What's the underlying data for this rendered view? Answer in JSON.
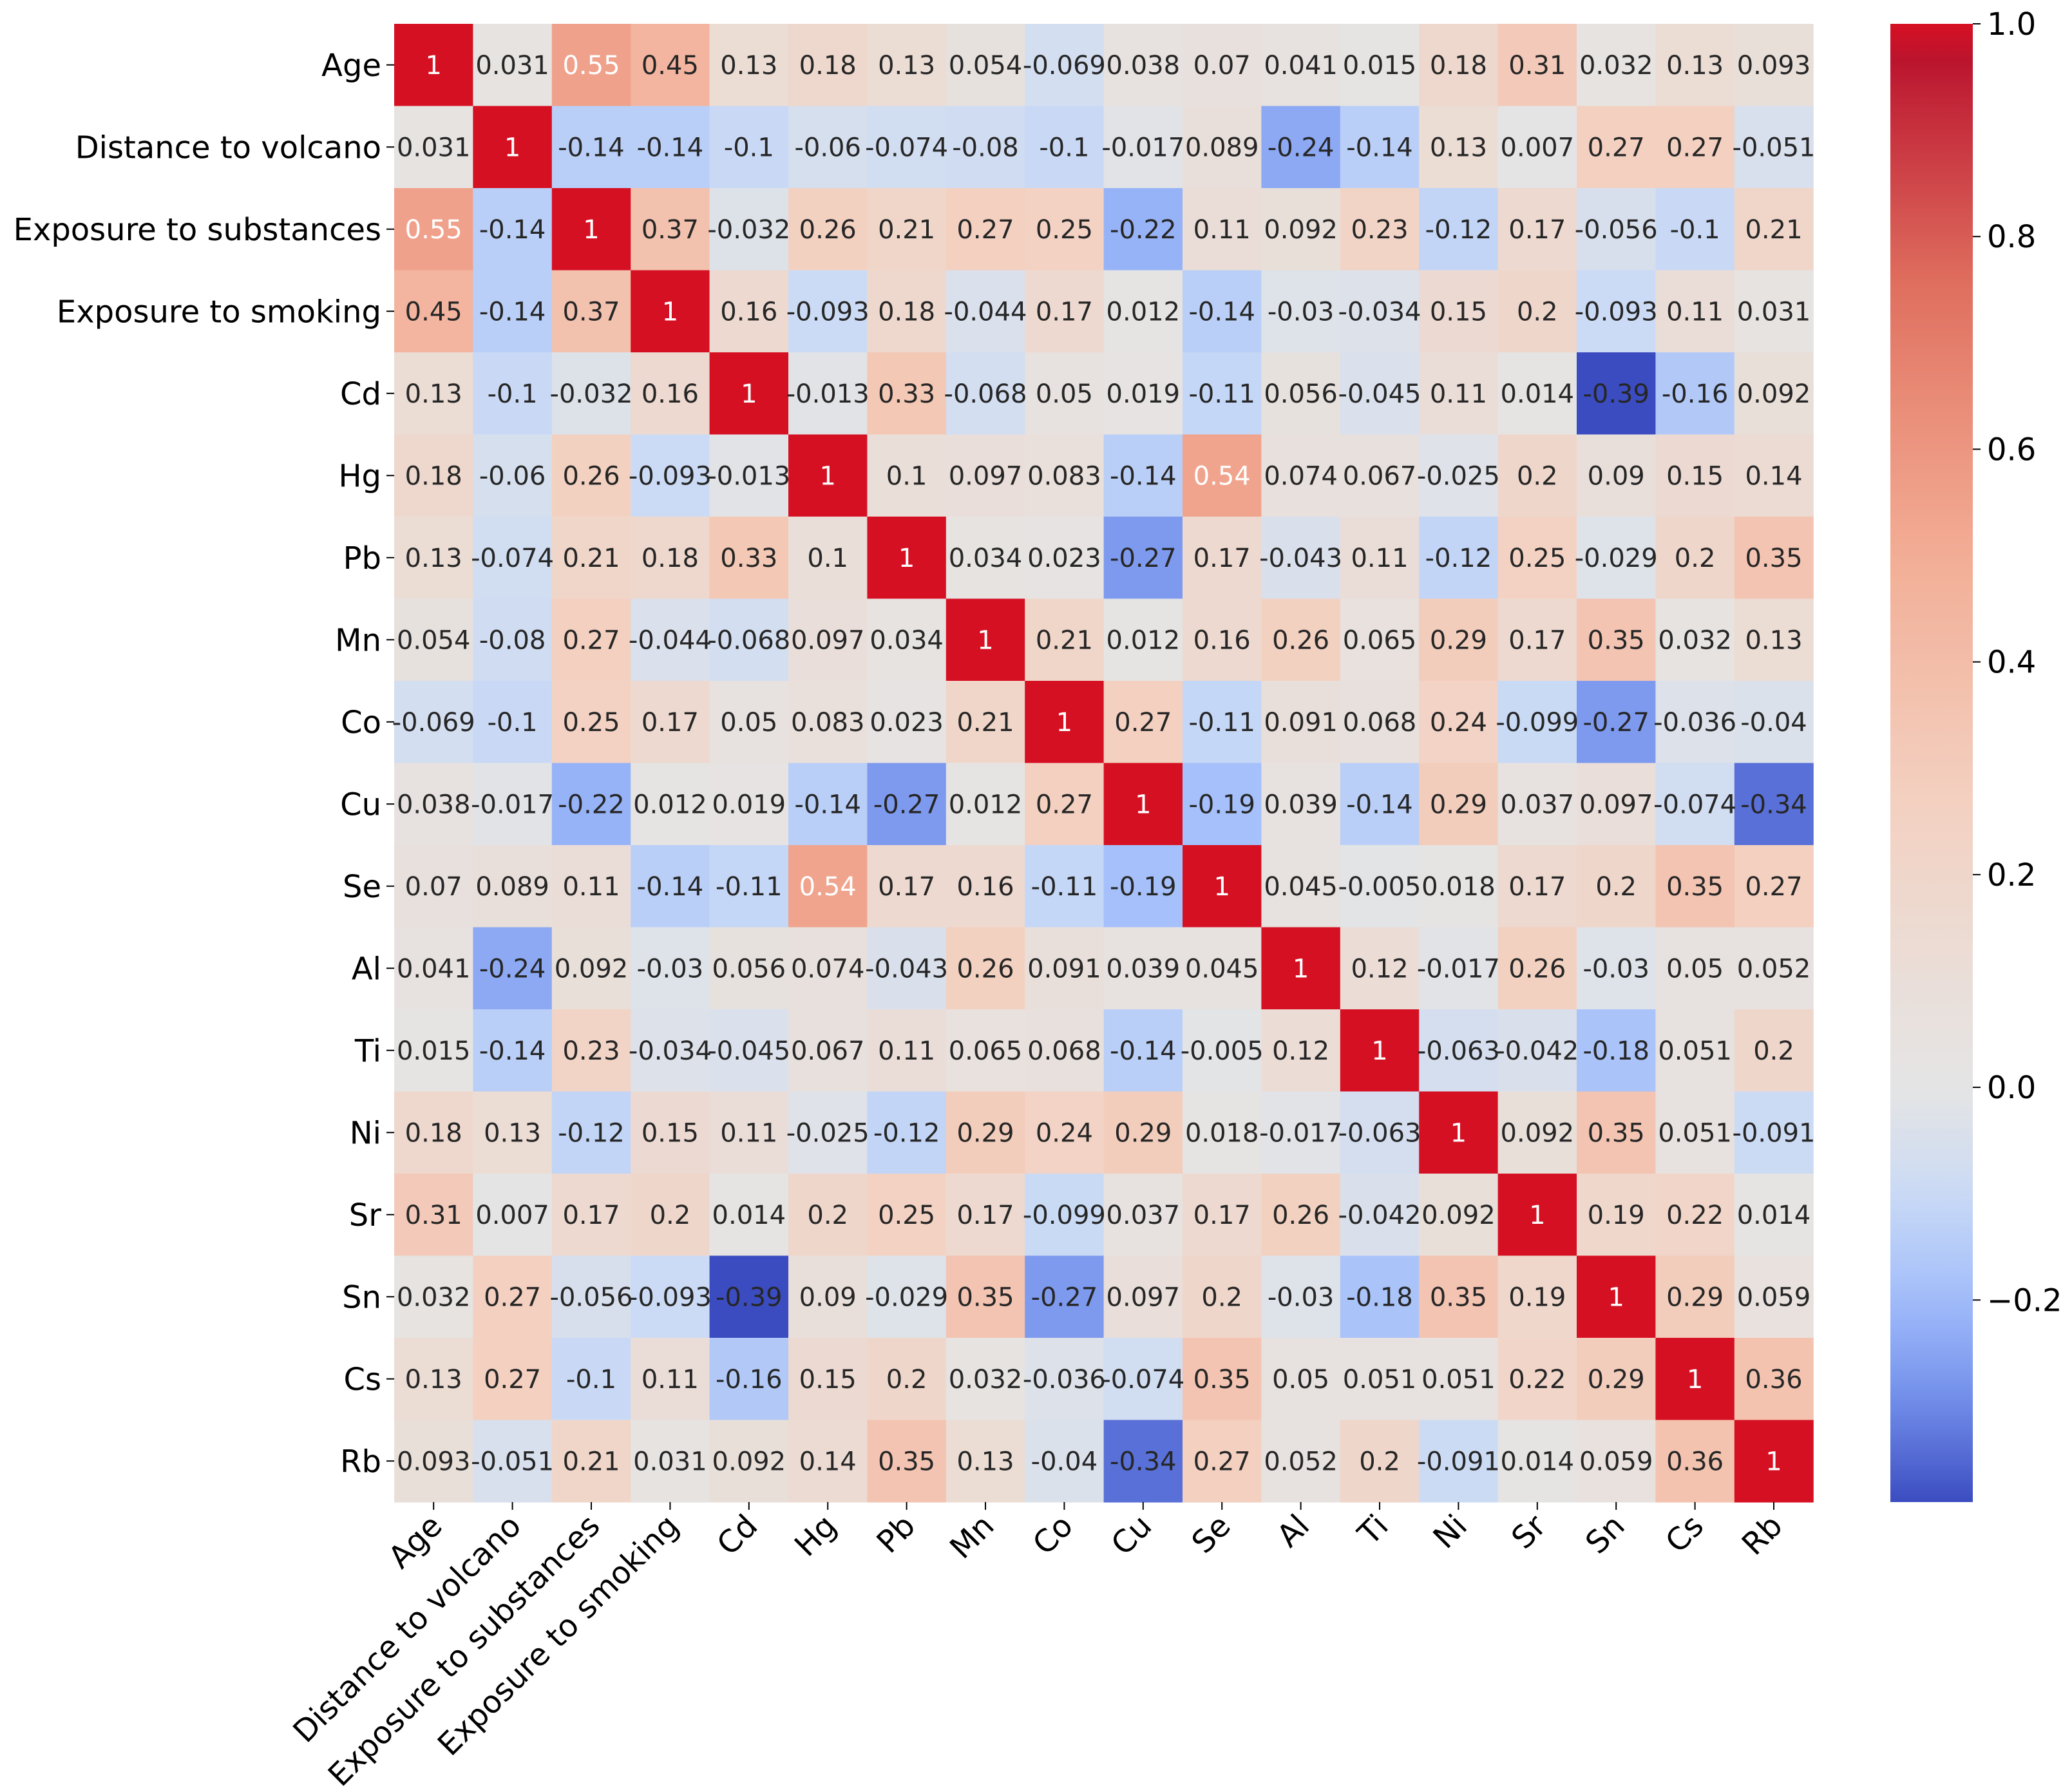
{
  "chart_data": {
    "type": "heatmap",
    "title": "",
    "variables": [
      "Age",
      "Distance to volcano",
      "Exposure to substances",
      "Exposure to smoking",
      "Cd",
      "Hg",
      "Pb",
      "Mn",
      "Co",
      "Cu",
      "Se",
      "Al",
      "Ti",
      "Ni",
      "Sr",
      "Sn",
      "Cs",
      "Rb"
    ],
    "values": [
      [
        "1",
        "0.031",
        "0.55",
        "0.45",
        "0.13",
        "0.18",
        "0.13",
        "0.054",
        "-0.069",
        "0.038",
        "0.07",
        "0.041",
        "0.015",
        "0.18",
        "0.31",
        "0.032",
        "0.13",
        "0.093"
      ],
      [
        "0.031",
        "1",
        "-0.14",
        "-0.14",
        "-0.1",
        "-0.06",
        "-0.074",
        "-0.08",
        "-0.1",
        "-0.017",
        "0.089",
        "-0.24",
        "-0.14",
        "0.13",
        "0.007",
        "0.27",
        "0.27",
        "-0.051"
      ],
      [
        "0.55",
        "-0.14",
        "1",
        "0.37",
        "-0.032",
        "0.26",
        "0.21",
        "0.27",
        "0.25",
        "-0.22",
        "0.11",
        "0.092",
        "0.23",
        "-0.12",
        "0.17",
        "-0.056",
        "-0.1",
        "0.21"
      ],
      [
        "0.45",
        "-0.14",
        "0.37",
        "1",
        "0.16",
        "-0.093",
        "0.18",
        "-0.044",
        "0.17",
        "0.012",
        "-0.14",
        "-0.03",
        "-0.034",
        "0.15",
        "0.2",
        "-0.093",
        "0.11",
        "0.031"
      ],
      [
        "0.13",
        "-0.1",
        "-0.032",
        "0.16",
        "1",
        "-0.013",
        "0.33",
        "-0.068",
        "0.05",
        "0.019",
        "-0.11",
        "0.056",
        "-0.045",
        "0.11",
        "0.014",
        "-0.39",
        "-0.16",
        "0.092"
      ],
      [
        "0.18",
        "-0.06",
        "0.26",
        "-0.093",
        "-0.013",
        "1",
        "0.1",
        "0.097",
        "0.083",
        "-0.14",
        "0.54",
        "0.074",
        "0.067",
        "-0.025",
        "0.2",
        "0.09",
        "0.15",
        "0.14"
      ],
      [
        "0.13",
        "-0.074",
        "0.21",
        "0.18",
        "0.33",
        "0.1",
        "1",
        "0.034",
        "0.023",
        "-0.27",
        "0.17",
        "-0.043",
        "0.11",
        "-0.12",
        "0.25",
        "-0.029",
        "0.2",
        "0.35"
      ],
      [
        "0.054",
        "-0.08",
        "0.27",
        "-0.044",
        "-0.068",
        "0.097",
        "0.034",
        "1",
        "0.21",
        "0.012",
        "0.16",
        "0.26",
        "0.065",
        "0.29",
        "0.17",
        "0.35",
        "0.032",
        "0.13"
      ],
      [
        "-0.069",
        "-0.1",
        "0.25",
        "0.17",
        "0.05",
        "0.083",
        "0.023",
        "0.21",
        "1",
        "0.27",
        "-0.11",
        "0.091",
        "0.068",
        "0.24",
        "-0.099",
        "-0.27",
        "-0.036",
        "-0.04"
      ],
      [
        "0.038",
        "-0.017",
        "-0.22",
        "0.012",
        "0.019",
        "-0.14",
        "-0.27",
        "0.012",
        "0.27",
        "1",
        "-0.19",
        "0.039",
        "-0.14",
        "0.29",
        "0.037",
        "0.097",
        "-0.074",
        "-0.34"
      ],
      [
        "0.07",
        "0.089",
        "0.11",
        "-0.14",
        "-0.11",
        "0.54",
        "0.17",
        "0.16",
        "-0.11",
        "-0.19",
        "1",
        "0.045",
        "-0.005",
        "0.018",
        "0.17",
        "0.2",
        "0.35",
        "0.27"
      ],
      [
        "0.041",
        "-0.24",
        "0.092",
        "-0.03",
        "0.056",
        "0.074",
        "-0.043",
        "0.26",
        "0.091",
        "0.039",
        "0.045",
        "1",
        "0.12",
        "-0.017",
        "0.26",
        "-0.03",
        "0.05",
        "0.052"
      ],
      [
        "0.015",
        "-0.14",
        "0.23",
        "-0.034",
        "-0.045",
        "0.067",
        "0.11",
        "0.065",
        "0.068",
        "-0.14",
        "-0.005",
        "0.12",
        "1",
        "-0.063",
        "-0.042",
        "-0.18",
        "0.051",
        "0.2"
      ],
      [
        "0.18",
        "0.13",
        "-0.12",
        "0.15",
        "0.11",
        "-0.025",
        "-0.12",
        "0.29",
        "0.24",
        "0.29",
        "0.018",
        "-0.017",
        "-0.063",
        "1",
        "0.092",
        "0.35",
        "0.051",
        "-0.091"
      ],
      [
        "0.31",
        "0.007",
        "0.17",
        "0.2",
        "0.014",
        "0.2",
        "0.25",
        "0.17",
        "-0.099",
        "0.037",
        "0.17",
        "0.26",
        "-0.042",
        "0.092",
        "1",
        "0.19",
        "0.22",
        "0.014"
      ],
      [
        "0.032",
        "0.27",
        "-0.056",
        "-0.093",
        "-0.39",
        "0.09",
        "-0.029",
        "0.35",
        "-0.27",
        "0.097",
        "0.2",
        "-0.03",
        "-0.18",
        "0.35",
        "0.19",
        "1",
        "0.29",
        "0.059"
      ],
      [
        "0.13",
        "0.27",
        "-0.1",
        "0.11",
        "-0.16",
        "0.15",
        "0.2",
        "0.032",
        "-0.036",
        "-0.074",
        "0.35",
        "0.05",
        "0.051",
        "0.051",
        "0.22",
        "0.29",
        "1",
        "0.36"
      ],
      [
        "0.093",
        "-0.051",
        "0.21",
        "0.031",
        "0.092",
        "0.14",
        "0.35",
        "0.13",
        "-0.04",
        "-0.34",
        "0.27",
        "0.052",
        "0.2",
        "-0.091",
        "0.014",
        "0.059",
        "0.36",
        "1"
      ]
    ],
    "colormap": "coolwarm",
    "vmin": -0.39,
    "vmax": 1.0,
    "colorbar_ticks": [
      "1.0",
      "0.8",
      "0.6",
      "0.4",
      "0.2",
      "0.0",
      "−0.2"
    ],
    "colorbar_tick_values": [
      1.0,
      0.8,
      0.6,
      0.4,
      0.2,
      0.0,
      -0.2
    ],
    "legend": "right",
    "grid": false
  }
}
